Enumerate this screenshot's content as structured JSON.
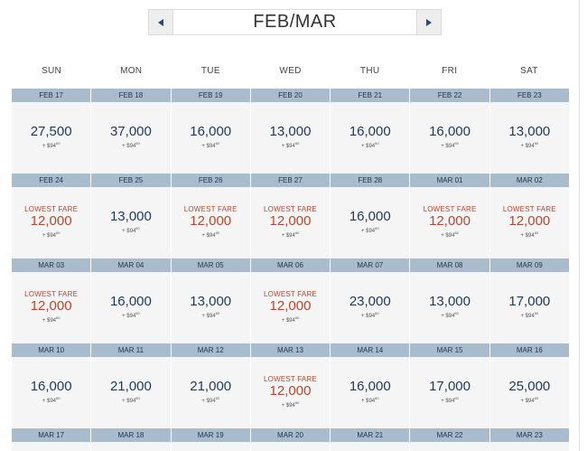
{
  "nav": {
    "month_label": "FEB/MAR",
    "prev_icon": "triangle-left-icon",
    "next_icon": "triangle-right-icon",
    "arrow_color": "#2b4a6f"
  },
  "days_of_week": [
    "SUN",
    "MON",
    "TUE",
    "WED",
    "THU",
    "FRI",
    "SAT"
  ],
  "lowest_fare_label": "LOWEST FARE",
  "tax_prefix": "+ $94",
  "tax_cents": "60",
  "weeks": [
    {
      "days": [
        {
          "date": "FEB 17",
          "miles": "27,500",
          "lowest": false
        },
        {
          "date": "FEB 18",
          "miles": "37,000",
          "lowest": false
        },
        {
          "date": "FEB 19",
          "miles": "16,000",
          "lowest": false
        },
        {
          "date": "FEB 20",
          "miles": "13,000",
          "lowest": false
        },
        {
          "date": "FEB 21",
          "miles": "16,000",
          "lowest": false
        },
        {
          "date": "FEB 22",
          "miles": "16,000",
          "lowest": false
        },
        {
          "date": "FEB 23",
          "miles": "13,000",
          "lowest": false
        }
      ]
    },
    {
      "days": [
        {
          "date": "FEB 24",
          "miles": "12,000",
          "lowest": true
        },
        {
          "date": "FEB 25",
          "miles": "13,000",
          "lowest": false
        },
        {
          "date": "FEB 26",
          "miles": "12,000",
          "lowest": true
        },
        {
          "date": "FEB 27",
          "miles": "12,000",
          "lowest": true
        },
        {
          "date": "FEB 28",
          "miles": "16,000",
          "lowest": false
        },
        {
          "date": "MAR 01",
          "miles": "12,000",
          "lowest": true
        },
        {
          "date": "MAR 02",
          "miles": "12,000",
          "lowest": true
        }
      ]
    },
    {
      "days": [
        {
          "date": "MAR 03",
          "miles": "12,000",
          "lowest": true
        },
        {
          "date": "MAR 04",
          "miles": "16,000",
          "lowest": false
        },
        {
          "date": "MAR 05",
          "miles": "13,000",
          "lowest": false
        },
        {
          "date": "MAR 06",
          "miles": "12,000",
          "lowest": true
        },
        {
          "date": "MAR 07",
          "miles": "23,000",
          "lowest": false
        },
        {
          "date": "MAR 08",
          "miles": "13,000",
          "lowest": false
        },
        {
          "date": "MAR 09",
          "miles": "17,000",
          "lowest": false
        }
      ]
    },
    {
      "days": [
        {
          "date": "MAR 10",
          "miles": "16,000",
          "lowest": false
        },
        {
          "date": "MAR 11",
          "miles": "21,000",
          "lowest": false
        },
        {
          "date": "MAR 12",
          "miles": "21,000",
          "lowest": false
        },
        {
          "date": "MAR 13",
          "miles": "12,000",
          "lowest": true
        },
        {
          "date": "MAR 14",
          "miles": "16,000",
          "lowest": false
        },
        {
          "date": "MAR 15",
          "miles": "17,000",
          "lowest": false
        },
        {
          "date": "MAR 16",
          "miles": "25,000",
          "lowest": false
        }
      ]
    }
  ],
  "partial_week": [
    "MAR 17",
    "MAR 18",
    "MAR 19",
    "MAR 20",
    "MAR 21",
    "MAR 22",
    "MAR 23"
  ]
}
